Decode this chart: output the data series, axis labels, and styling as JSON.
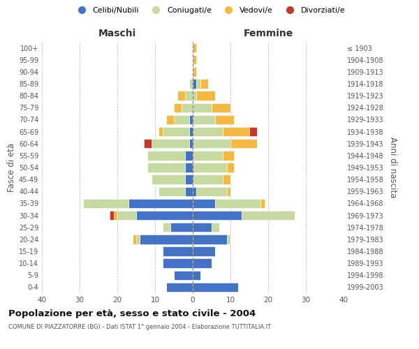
{
  "age_groups": [
    "0-4",
    "5-9",
    "10-14",
    "15-19",
    "20-24",
    "25-29",
    "30-34",
    "35-39",
    "40-44",
    "45-49",
    "50-54",
    "55-59",
    "60-64",
    "65-69",
    "70-74",
    "75-79",
    "80-84",
    "85-89",
    "90-94",
    "95-99",
    "100+"
  ],
  "birth_years": [
    "1999-2003",
    "1994-1998",
    "1989-1993",
    "1984-1988",
    "1979-1983",
    "1974-1978",
    "1969-1973",
    "1964-1968",
    "1959-1963",
    "1954-1958",
    "1949-1953",
    "1944-1948",
    "1939-1943",
    "1934-1938",
    "1929-1933",
    "1924-1928",
    "1919-1923",
    "1914-1918",
    "1909-1913",
    "1904-1908",
    "≤ 1903"
  ],
  "maschi": {
    "celibi": [
      7,
      5,
      8,
      8,
      14,
      6,
      15,
      17,
      2,
      2,
      2,
      2,
      1,
      1,
      1,
      0,
      0,
      0,
      0,
      0,
      0
    ],
    "coniugati": [
      0,
      0,
      0,
      0,
      1,
      2,
      5,
      12,
      7,
      9,
      10,
      10,
      10,
      7,
      4,
      3,
      2,
      1,
      0,
      0,
      0
    ],
    "vedovi": [
      0,
      0,
      0,
      0,
      1,
      0,
      1,
      0,
      0,
      0,
      0,
      0,
      0,
      1,
      2,
      2,
      2,
      0,
      0,
      0,
      0
    ],
    "divorziati": [
      0,
      0,
      0,
      0,
      0,
      0,
      1,
      0,
      0,
      0,
      0,
      0,
      2,
      0,
      0,
      0,
      0,
      0,
      0,
      0,
      0
    ]
  },
  "femmine": {
    "nubili": [
      12,
      2,
      5,
      6,
      9,
      5,
      13,
      6,
      1,
      0,
      0,
      0,
      0,
      0,
      0,
      0,
      0,
      1,
      0,
      0,
      0
    ],
    "coniugate": [
      0,
      0,
      0,
      0,
      1,
      2,
      14,
      12,
      8,
      8,
      9,
      8,
      10,
      8,
      6,
      5,
      1,
      1,
      0,
      0,
      0
    ],
    "vedove": [
      0,
      0,
      0,
      0,
      0,
      0,
      0,
      1,
      1,
      2,
      2,
      3,
      7,
      7,
      5,
      5,
      5,
      2,
      1,
      1,
      1
    ],
    "divorziate": [
      0,
      0,
      0,
      0,
      0,
      0,
      0,
      0,
      0,
      0,
      0,
      0,
      0,
      2,
      0,
      0,
      0,
      0,
      0,
      0,
      0
    ]
  },
  "color_celibi": "#4472C4",
  "color_coniugati": "#C5D9A0",
  "color_vedovi": "#F4B942",
  "color_divorziati": "#C0392B",
  "title": "Popolazione per età, sesso e stato civile - 2004",
  "subtitle": "COMUNE DI PIAZZATORRE (BG) - Dati ISTAT 1° gennaio 2004 - Elaborazione TUTTITALIA.IT",
  "xlabel_left": "Maschi",
  "xlabel_right": "Femmine",
  "ylabel_left": "Fasce di età",
  "ylabel_right": "Anni di nascita",
  "xlim": 40,
  "legend_labels": [
    "Celibi/Nubili",
    "Coniugati/e",
    "Vedovi/e",
    "Divorziati/e"
  ],
  "bg_color": "#FFFFFF",
  "grid_color": "#BBBBBB"
}
